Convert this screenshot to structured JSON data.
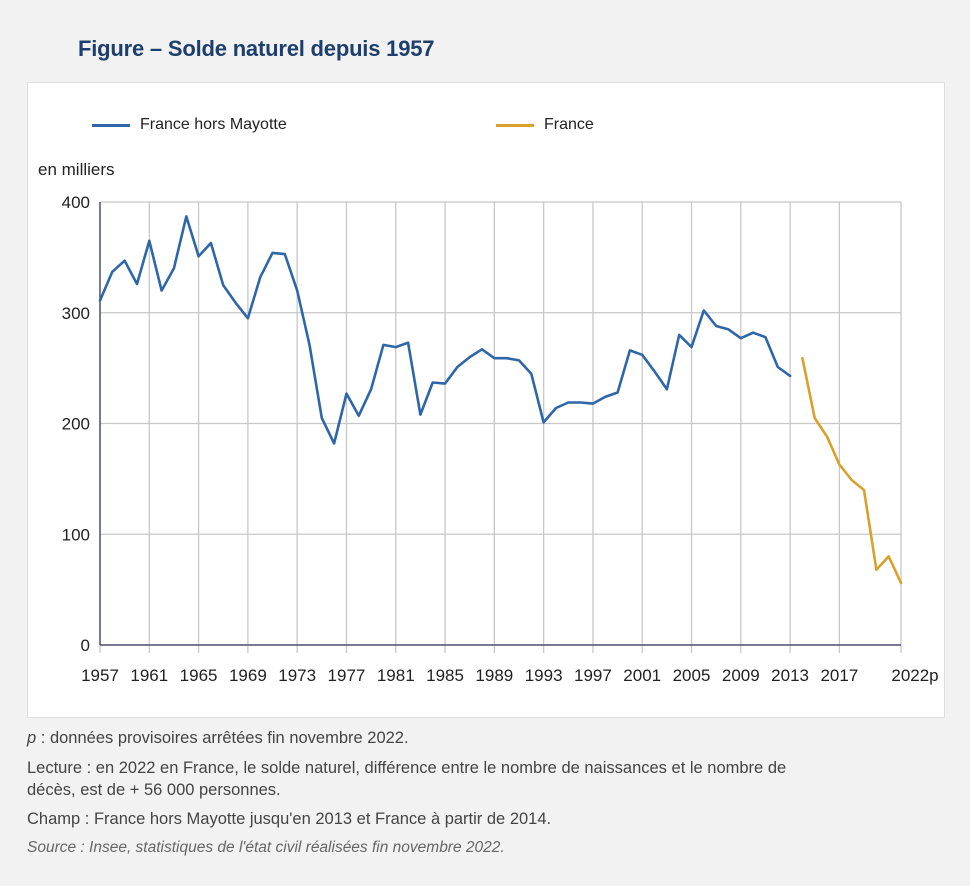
{
  "header": {
    "title": "Figure – Solde naturel depuis 1957"
  },
  "footer": {
    "note_p_symbol": "p",
    "note_p_text": " : données provisoires arrêtées fin novembre 2022.",
    "lecture_line1": "Lecture : en 2022 en France, le solde naturel, différence entre le nombre de naissances et le nombre de",
    "lecture_line2": "décès, est de + 56 000 personnes.",
    "champ": "Champ : France hors Mayotte jusqu'en 2013 et France à partir de 2014.",
    "source": "Source : Insee, statistiques de l'état civil réalisées fin novembre 2022."
  },
  "chart_data": {
    "type": "line",
    "title": "Figure – Solde naturel depuis 1957",
    "xlabel": "",
    "ylabel": "en milliers",
    "ylim": [
      0,
      400
    ],
    "xlim": [
      1957,
      2022
    ],
    "yticks": [
      0,
      100,
      200,
      300,
      400
    ],
    "xticks": [
      1957,
      1961,
      1965,
      1969,
      1973,
      1977,
      1981,
      1985,
      1989,
      1993,
      1997,
      2001,
      2005,
      2009,
      2013,
      2017,
      2022
    ],
    "xtick_labels": [
      "1957",
      "1961",
      "1965",
      "1969",
      "1973",
      "1977",
      "1981",
      "1985",
      "1989",
      "1993",
      "1997",
      "2001",
      "2005",
      "2009",
      "2013",
      "2017",
      "2022p"
    ],
    "grid": true,
    "legend_position": "top",
    "series": [
      {
        "name": "France hors Mayotte",
        "color": "#2f66a8",
        "x": [
          1957,
          1958,
          1959,
          1960,
          1961,
          1962,
          1963,
          1964,
          1965,
          1966,
          1967,
          1968,
          1969,
          1970,
          1971,
          1972,
          1973,
          1974,
          1975,
          1976,
          1977,
          1978,
          1979,
          1980,
          1981,
          1982,
          1983,
          1984,
          1985,
          1986,
          1987,
          1988,
          1989,
          1990,
          1991,
          1992,
          1993,
          1994,
          1995,
          1996,
          1997,
          1998,
          1999,
          2000,
          2001,
          2002,
          2003,
          2004,
          2005,
          2006,
          2007,
          2008,
          2009,
          2010,
          2011,
          2012,
          2013
        ],
        "values": [
          311,
          337,
          347,
          326,
          365,
          320,
          340,
          387,
          351,
          363,
          325,
          309,
          295,
          332,
          354,
          353,
          320,
          271,
          205,
          182,
          227,
          207,
          231,
          271,
          269,
          273,
          208,
          237,
          236,
          251,
          260,
          267,
          259,
          259,
          257,
          245,
          201,
          214,
          219,
          219,
          218,
          224,
          228,
          266,
          262,
          247,
          231,
          280,
          269,
          302,
          288,
          285,
          277,
          282,
          278,
          251,
          243
        ]
      },
      {
        "name": "France",
        "color": "#d9a12b",
        "x": [
          2014,
          2015,
          2016,
          2017,
          2018,
          2019,
          2020,
          2021,
          2022
        ],
        "values": [
          259,
          205,
          188,
          163,
          149,
          140,
          68,
          80,
          56
        ]
      }
    ]
  }
}
